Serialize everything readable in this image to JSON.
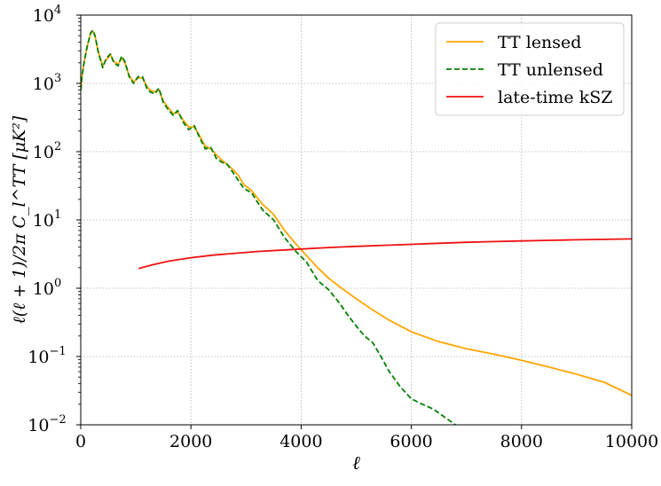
{
  "chart_data": {
    "type": "line",
    "xlabel": "ℓ",
    "ylabel": "ℓ(ℓ + 1)/2π C_l^TT  [μK²]",
    "xlim": [
      0,
      10000
    ],
    "ylim": [
      0.01,
      10000
    ],
    "yscale": "log",
    "grid": true,
    "legend_position": "top-right",
    "x_ticks": [
      0,
      2000,
      4000,
      6000,
      8000,
      10000
    ],
    "x_tick_labels": [
      "0",
      "2000",
      "4000",
      "6000",
      "8000",
      "10000"
    ],
    "y_ticks": [
      0.01,
      0.1,
      1,
      10,
      100,
      1000,
      10000
    ],
    "y_tick_labels": [
      {
        "base": "10",
        "exp": "−2"
      },
      {
        "base": "10",
        "exp": "−1"
      },
      {
        "base": "10",
        "exp": "0"
      },
      {
        "base": "10",
        "exp": "1"
      },
      {
        "base": "10",
        "exp": "2"
      },
      {
        "base": "10",
        "exp": "3"
      },
      {
        "base": "10",
        "exp": "4"
      }
    ],
    "series": [
      {
        "name": "TT lensed",
        "color": "#ffa500",
        "style": "solid",
        "x": [
          2,
          20,
          60,
          120,
          180,
          220,
          260,
          320,
          400,
          460,
          540,
          600,
          680,
          740,
          800,
          880,
          960,
          1040,
          1120,
          1200,
          1260,
          1340,
          1420,
          1500,
          1580,
          1680,
          1760,
          1860,
          1960,
          2060,
          2160,
          2260,
          2360,
          2460,
          2560,
          2660,
          2760,
          2860,
          2960,
          3100,
          3300,
          3500,
          3700,
          3900,
          4100,
          4300,
          4500,
          4700,
          5000,
          5300,
          5600,
          6000,
          6500,
          7000,
          7500,
          8000,
          8500,
          9000,
          9500,
          10000
        ],
        "y": [
          800,
          1200,
          2000,
          3600,
          5400,
          5800,
          4900,
          2900,
          1800,
          2200,
          2600,
          2100,
          1900,
          2400,
          2000,
          1300,
          1050,
          1200,
          1200,
          900,
          800,
          750,
          800,
          550,
          450,
          360,
          380,
          290,
          230,
          230,
          170,
          120,
          110,
          90,
          75,
          65,
          55,
          45,
          33,
          27,
          17,
          12,
          7,
          4.5,
          3,
          2,
          1.4,
          1.05,
          0.7,
          0.48,
          0.34,
          0.23,
          0.165,
          0.13,
          0.108,
          0.088,
          0.07,
          0.055,
          0.042,
          0.027
        ]
      },
      {
        "name": "TT unlensed",
        "color": "#008000",
        "style": "dashed",
        "x": [
          2,
          20,
          60,
          120,
          180,
          220,
          260,
          320,
          400,
          460,
          540,
          600,
          680,
          740,
          800,
          880,
          960,
          1040,
          1120,
          1200,
          1260,
          1340,
          1420,
          1500,
          1580,
          1680,
          1760,
          1860,
          1960,
          2060,
          2160,
          2260,
          2360,
          2460,
          2560,
          2660,
          2760,
          2860,
          2960,
          3100,
          3300,
          3500,
          3700,
          3900,
          4100,
          4300,
          4500,
          4700,
          4850,
          5000,
          5150,
          5300,
          5450,
          5600,
          5800,
          6000,
          6200,
          6400,
          6600,
          6800
        ],
        "y": [
          800,
          1200,
          2000,
          3600,
          5500,
          6000,
          5000,
          2800,
          1700,
          2300,
          2700,
          2000,
          1800,
          2500,
          2100,
          1250,
          1000,
          1250,
          1250,
          850,
          750,
          700,
          850,
          520,
          420,
          340,
          400,
          270,
          210,
          240,
          160,
          110,
          115,
          80,
          70,
          65,
          50,
          38,
          29,
          25,
          14,
          10,
          5.5,
          3.5,
          2.4,
          1.3,
          0.95,
          0.6,
          0.4,
          0.28,
          0.2,
          0.16,
          0.1,
          0.06,
          0.036,
          0.024,
          0.02,
          0.017,
          0.013,
          0.01
        ]
      },
      {
        "name": "late-time kSZ",
        "color": "#ee1111",
        "style": "solid",
        "x": [
          1050,
          1300,
          1600,
          2000,
          2400,
          2800,
          3200,
          3600,
          4000,
          4500,
          5000,
          5500,
          6000,
          6500,
          7000,
          7500,
          8000,
          8500,
          9000,
          9500,
          10000
        ],
        "y": [
          1.95,
          2.2,
          2.5,
          2.8,
          3.05,
          3.25,
          3.45,
          3.6,
          3.75,
          3.95,
          4.1,
          4.25,
          4.4,
          4.55,
          4.7,
          4.82,
          4.93,
          5.03,
          5.12,
          5.2,
          5.28
        ]
      }
    ]
  }
}
